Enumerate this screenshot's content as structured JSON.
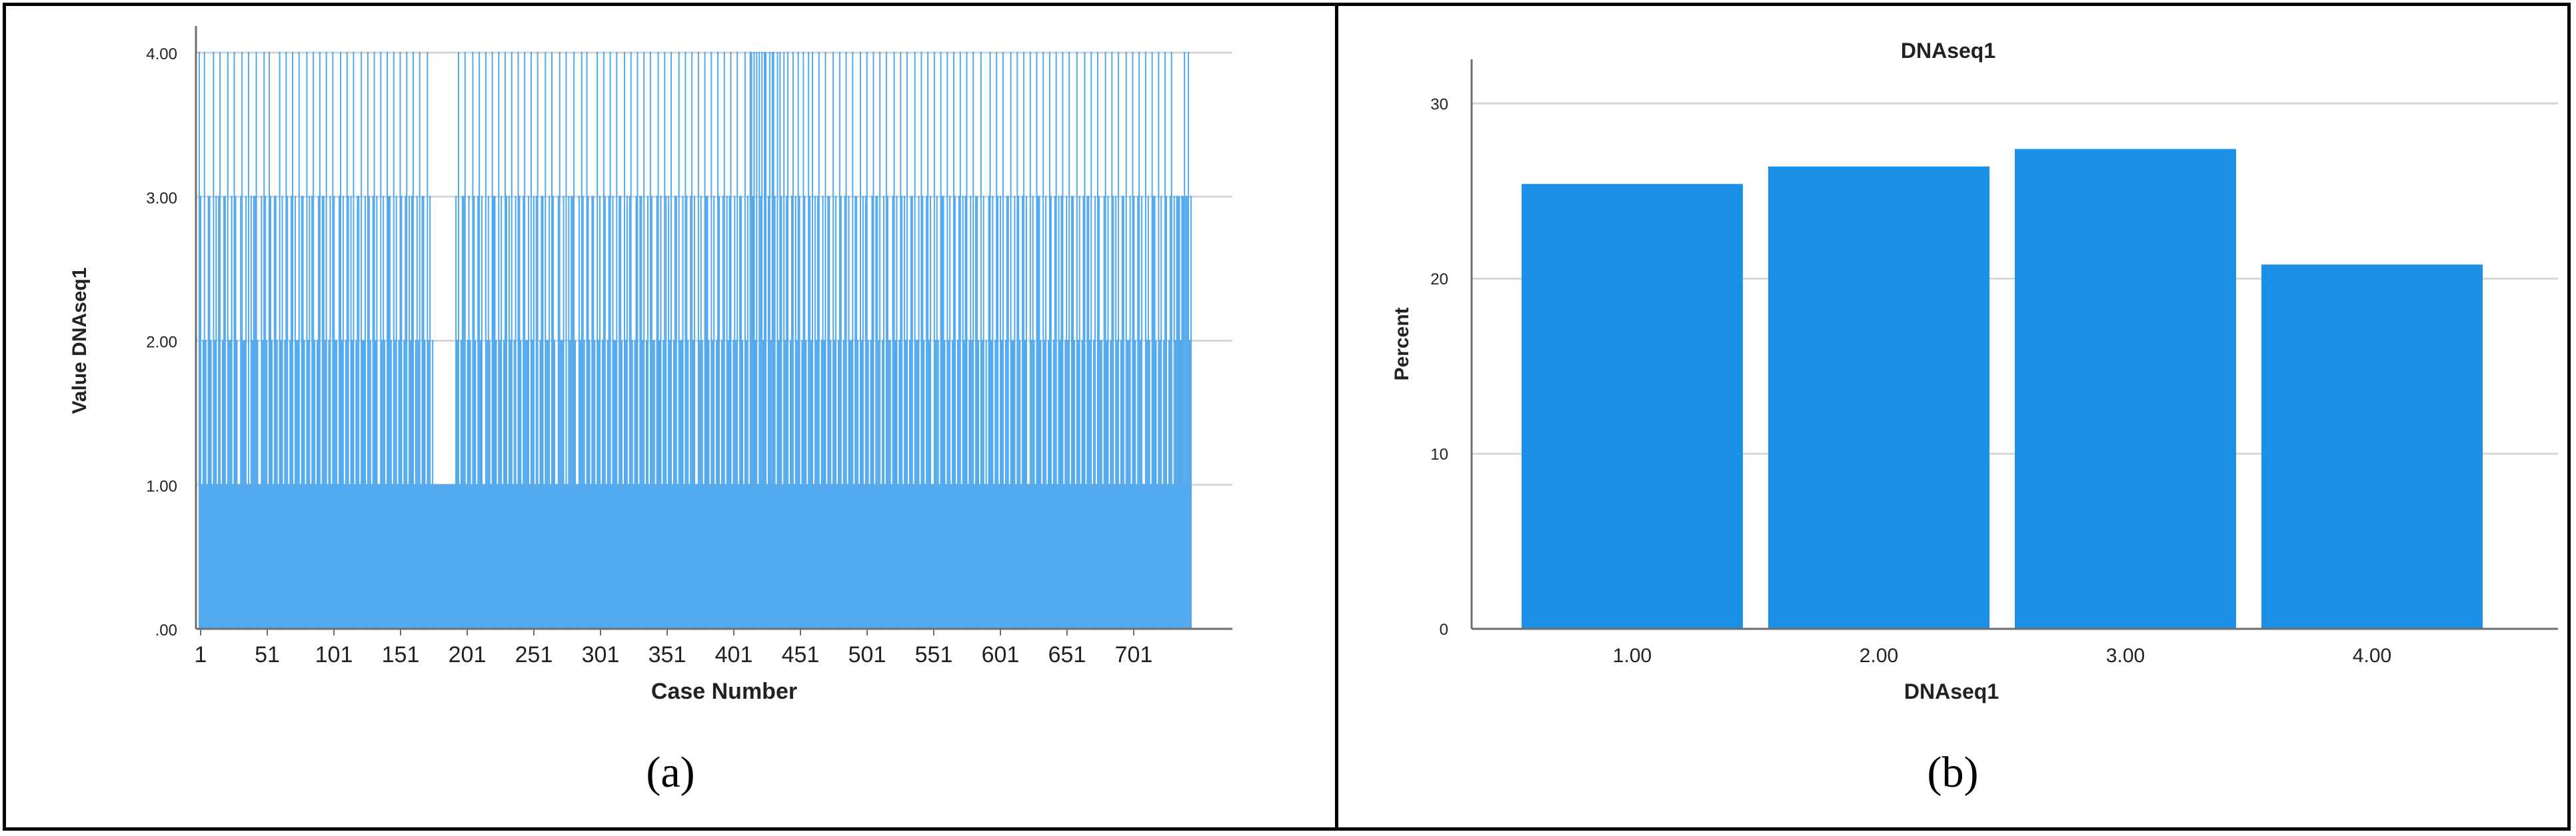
{
  "colors": {
    "bar": "#1a90e6",
    "line_chart": "#52a9ee",
    "grid": "#d6d6d6",
    "axis": "#6e6e6e",
    "text": "#222222"
  },
  "captions": {
    "a": "(a)",
    "b": "(b)"
  },
  "chart_data": [
    {
      "type": "bar",
      "panel": "a",
      "title": "",
      "xlabel": "Case Number",
      "ylabel": "Value DNAseq1",
      "ylim": [
        0,
        4
      ],
      "yticks": [
        ".00",
        "1.00",
        "2.00",
        "3.00",
        "4.00"
      ],
      "xticks": [
        "1",
        "51",
        "101",
        "151",
        "201",
        "251",
        "301",
        "351",
        "401",
        "451",
        "501",
        "551",
        "601",
        "651",
        "701"
      ],
      "xlim": [
        1,
        751
      ],
      "grid": true,
      "values": [
        4,
        3,
        1,
        2,
        4,
        2,
        1,
        3,
        3,
        2,
        1,
        4,
        2,
        3,
        1,
        3,
        4,
        1,
        2,
        3,
        3,
        1,
        4,
        2,
        2,
        3,
        1,
        4,
        3,
        2,
        1,
        1,
        3,
        4,
        2,
        2,
        3,
        1,
        4,
        1,
        3,
        2,
        3,
        3,
        4,
        2,
        1,
        1,
        3,
        2,
        4,
        3,
        2,
        1,
        4,
        3,
        2,
        1,
        3,
        3,
        2,
        1,
        4,
        2,
        3,
        1,
        2,
        4,
        3,
        1,
        2,
        3,
        4,
        1,
        3,
        2,
        2,
        4,
        1,
        3,
        3,
        2,
        1,
        4,
        2,
        3,
        1,
        3,
        4,
        2,
        1,
        2,
        3,
        4,
        1,
        3,
        3,
        2,
        4,
        1,
        2,
        3,
        1,
        4,
        3,
        2,
        2,
        1,
        3,
        4,
        2,
        3,
        1,
        2,
        4,
        3,
        1,
        3,
        2,
        4,
        1,
        2,
        3,
        3,
        1,
        4,
        2,
        2,
        3,
        1,
        4,
        3,
        2,
        1,
        3,
        4,
        2,
        3,
        1,
        1,
        4,
        2,
        3,
        2,
        1,
        4,
        3,
        3,
        2,
        1,
        4,
        2,
        3,
        1,
        2,
        4,
        3,
        1,
        2,
        3,
        4,
        1,
        3,
        2,
        3,
        4,
        1,
        2,
        3,
        2,
        4,
        1,
        3,
        3,
        2,
        1,
        4,
        2,
        3,
        1,
        2,
        1,
        1,
        1,
        1,
        1,
        1,
        1,
        1,
        1,
        1,
        1,
        1,
        1,
        1,
        1,
        1,
        1,
        3,
        2,
        4,
        1,
        2,
        3,
        3,
        4,
        1,
        2,
        3,
        2,
        1,
        4,
        3,
        2,
        1,
        3,
        4,
        2,
        3,
        1,
        1,
        4,
        2,
        3,
        2,
        1,
        4,
        3,
        3,
        2,
        1,
        4,
        2,
        3,
        1,
        2,
        4,
        3,
        1,
        3,
        2,
        4,
        1,
        2,
        3,
        1,
        4,
        3,
        2,
        1,
        3,
        4,
        2,
        2,
        3,
        1,
        4,
        2,
        3,
        1,
        3,
        4,
        1,
        2,
        3,
        3,
        1,
        4,
        2,
        2,
        3,
        1,
        4,
        3,
        2,
        1,
        1,
        3,
        4,
        2,
        2,
        3,
        1,
        4,
        1,
        3,
        2,
        3,
        3,
        4,
        2,
        1,
        1,
        3,
        2,
        4,
        3,
        2,
        1,
        4,
        3,
        2,
        1,
        3,
        3,
        2,
        1,
        4,
        2,
        3,
        1,
        2,
        4,
        3,
        1,
        2,
        3,
        4,
        1,
        3,
        2,
        2,
        4,
        1,
        3,
        3,
        2,
        1,
        4,
        2,
        3,
        1,
        3,
        4,
        2,
        1,
        2,
        3,
        4,
        1,
        3,
        3,
        2,
        4,
        1,
        2,
        3,
        1,
        4,
        3,
        2,
        2,
        1,
        3,
        4,
        2,
        3,
        1,
        2,
        4,
        3,
        1,
        3,
        2,
        4,
        1,
        2,
        3,
        3,
        1,
        4,
        2,
        2,
        3,
        1,
        4,
        3,
        2,
        1,
        3,
        4,
        2,
        3,
        1,
        1,
        4,
        2,
        3,
        2,
        1,
        4,
        3,
        3,
        2,
        1,
        4,
        2,
        3,
        1,
        2,
        4,
        3,
        1,
        2,
        3,
        4,
        1,
        3,
        2,
        3,
        4,
        1,
        2,
        3,
        2,
        4,
        1,
        3,
        3,
        2,
        1,
        4,
        2,
        3,
        1,
        4,
        4,
        3,
        4,
        2,
        4,
        1,
        4,
        3,
        4,
        2,
        4,
        4,
        1,
        3,
        4,
        2,
        4,
        4,
        3,
        1,
        4,
        2,
        4,
        3,
        1,
        4,
        2,
        3,
        4,
        1,
        2,
        3,
        4,
        1,
        3,
        2,
        4,
        3,
        1,
        2,
        4,
        3,
        2,
        1,
        4,
        3,
        2,
        4,
        1,
        3,
        2,
        3,
        4,
        1,
        2,
        3,
        2,
        4,
        1,
        3,
        3,
        2,
        1,
        4,
        2,
        3,
        1,
        2,
        4,
        3,
        1,
        2,
        3,
        4,
        1,
        3,
        2,
        2,
        4,
        1,
        3,
        3,
        2,
        1,
        4,
        2,
        3,
        1,
        3,
        4,
        2,
        1,
        2,
        3,
        4,
        1,
        3,
        3,
        2,
        4,
        1,
        2,
        3,
        1,
        4,
        3,
        2,
        2,
        1,
        3,
        4,
        2,
        3,
        1,
        2,
        4,
        3,
        1,
        3,
        2,
        4,
        1,
        2,
        3,
        3,
        1,
        4,
        2,
        2,
        3,
        1,
        4,
        3,
        2,
        1,
        3,
        4,
        2,
        3,
        1,
        1,
        4,
        2,
        3,
        2,
        1,
        4,
        3,
        3,
        2,
        1,
        4,
        2,
        3,
        1,
        2,
        4,
        3,
        1,
        2,
        3,
        4,
        1,
        3,
        2,
        3,
        4,
        1,
        2,
        3,
        2,
        4,
        1,
        3,
        3,
        2,
        1,
        4,
        2,
        3,
        1,
        2,
        1,
        3,
        4,
        2,
        3,
        1,
        2,
        4,
        3,
        1,
        3,
        2,
        4,
        1,
        2,
        3,
        3,
        1,
        4,
        2,
        2,
        3,
        1,
        4,
        3,
        2,
        1,
        3,
        4,
        2,
        3,
        1,
        1,
        4,
        2,
        3,
        2,
        1,
        4,
        3,
        3,
        2,
        1,
        4,
        2,
        3,
        1,
        2,
        4,
        3,
        1,
        2,
        3,
        4,
        1,
        3,
        2,
        3,
        4,
        1,
        2,
        3,
        2,
        4,
        1,
        3,
        3,
        2,
        1,
        4,
        2,
        3,
        1,
        2,
        3,
        4,
        1,
        3,
        3,
        2,
        4,
        1,
        2,
        3,
        1,
        4,
        3,
        2,
        2,
        1,
        3,
        4,
        2,
        3,
        1,
        2,
        4,
        3,
        1,
        3,
        2,
        4,
        1,
        2,
        3,
        3,
        1,
        4,
        2,
        2,
        3,
        1,
        4,
        3,
        2,
        1,
        3,
        4,
        2,
        3,
        1,
        1,
        4,
        2,
        3,
        2,
        1,
        4,
        3,
        3,
        2,
        1,
        4,
        2,
        3,
        1,
        2,
        4,
        3,
        1,
        2,
        3,
        4,
        1,
        3,
        2,
        3,
        3,
        3,
        2,
        3,
        3,
        4,
        3,
        3,
        4,
        2,
        3
      ]
    },
    {
      "type": "bar",
      "panel": "b",
      "title": "DNAseq1",
      "xlabel": "DNAseq1",
      "ylabel": "Percent",
      "categories": [
        "1.00",
        "2.00",
        "3.00",
        "4.00"
      ],
      "values": [
        25.4,
        26.4,
        27.4,
        20.8
      ],
      "ylim": [
        0,
        31
      ],
      "yticks": [
        "0",
        "10",
        "20",
        "30"
      ],
      "grid": true
    }
  ]
}
